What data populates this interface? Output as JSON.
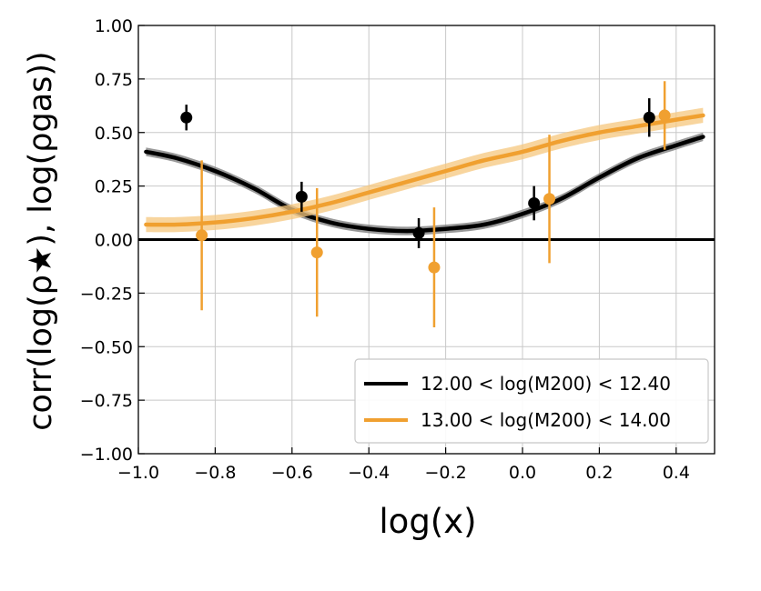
{
  "chart_data": {
    "type": "line",
    "xlabel": "log(x)",
    "ylabel": "corr(log(ρ★), log(ρgas))",
    "xlim": [
      -1.0,
      0.5
    ],
    "ylim": [
      -1.0,
      1.0
    ],
    "x_ticks": [
      -1.0,
      -0.8,
      -0.6,
      -0.4,
      -0.2,
      0.0,
      0.2,
      0.4
    ],
    "x_tick_labels": [
      "−1.0",
      "−0.8",
      "−0.6",
      "−0.4",
      "−0.2",
      "0.0",
      "0.2",
      "0.4"
    ],
    "y_ticks": [
      -1.0,
      -0.75,
      -0.5,
      -0.25,
      0.0,
      0.25,
      0.5,
      0.75,
      1.0
    ],
    "y_tick_labels": [
      "−1.00",
      "−0.75",
      "−0.50",
      "−0.25",
      "0.00",
      "0.25",
      "0.50",
      "0.75",
      "1.00"
    ],
    "grid": true,
    "zero_line": 0.0,
    "legend_position": "bottom-right",
    "series": [
      {
        "name": "12.00 < log(M200) < 12.40",
        "color": "#000000",
        "curve": {
          "x": [
            -0.98,
            -0.9,
            -0.8,
            -0.7,
            -0.6,
            -0.5,
            -0.4,
            -0.3,
            -0.2,
            -0.1,
            0.0,
            0.1,
            0.2,
            0.3,
            0.4,
            0.47
          ],
          "y": [
            0.41,
            0.38,
            0.32,
            0.24,
            0.14,
            0.08,
            0.05,
            0.04,
            0.05,
            0.07,
            0.12,
            0.19,
            0.29,
            0.38,
            0.44,
            0.48
          ],
          "band": 0.02
        },
        "points": [
          {
            "x": -0.875,
            "y": 0.57,
            "err": 0.06
          },
          {
            "x": -0.575,
            "y": 0.2,
            "err": 0.07
          },
          {
            "x": -0.27,
            "y": 0.03,
            "err": 0.07
          },
          {
            "x": 0.03,
            "y": 0.17,
            "err": 0.08
          },
          {
            "x": 0.33,
            "y": 0.57,
            "err": 0.09
          }
        ]
      },
      {
        "name": "13.00 < log(M200) < 14.00",
        "color": "#f0a030",
        "curve": {
          "x": [
            -0.98,
            -0.9,
            -0.8,
            -0.7,
            -0.6,
            -0.5,
            -0.4,
            -0.3,
            -0.2,
            -0.1,
            0.0,
            0.1,
            0.2,
            0.3,
            0.4,
            0.47
          ],
          "y": [
            0.07,
            0.07,
            0.08,
            0.1,
            0.13,
            0.17,
            0.22,
            0.27,
            0.32,
            0.37,
            0.41,
            0.46,
            0.5,
            0.53,
            0.56,
            0.58
          ],
          "band": 0.035
        },
        "points": [
          {
            "x": -0.835,
            "y": 0.02,
            "err": 0.35
          },
          {
            "x": -0.535,
            "y": -0.06,
            "err": 0.3
          },
          {
            "x": -0.23,
            "y": -0.13,
            "err": 0.28
          },
          {
            "x": 0.07,
            "y": 0.19,
            "err": 0.3
          },
          {
            "x": 0.37,
            "y": 0.58,
            "err": 0.16
          }
        ]
      }
    ]
  }
}
